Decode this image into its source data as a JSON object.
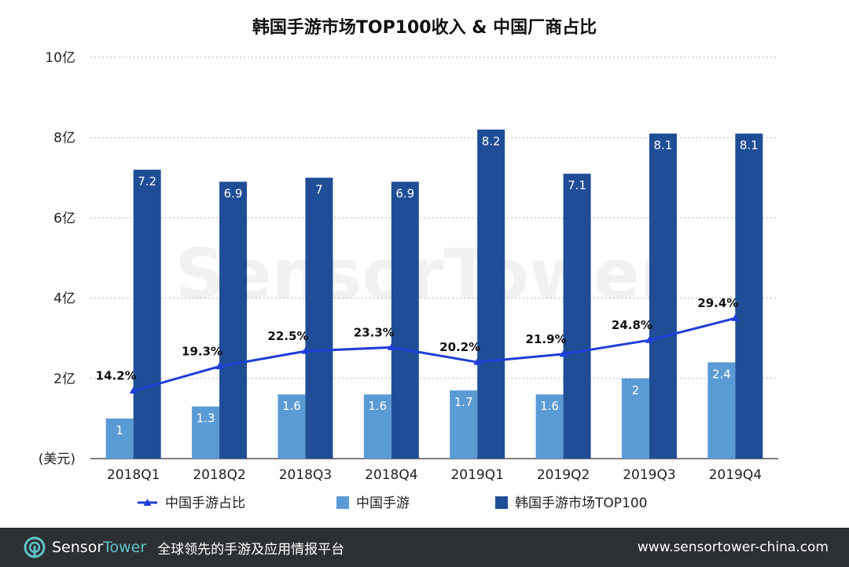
{
  "chart_data": {
    "type": "bar",
    "title": "韩国手游市场TOP100收入 & 中国厂商占比",
    "categories": [
      "2018Q1",
      "2018Q2",
      "2018Q3",
      "2018Q4",
      "2019Q1",
      "2019Q2",
      "2019Q3",
      "2019Q4"
    ],
    "series": [
      {
        "name": "中国手游",
        "type": "bar",
        "color": "#5b9bd5",
        "values": [
          1,
          1.3,
          1.6,
          1.6,
          1.7,
          1.6,
          2,
          2.4
        ],
        "labels": [
          "1",
          "1.3",
          "1.6",
          "1.6",
          "1.7",
          "1.6",
          "2",
          "2.4"
        ]
      },
      {
        "name": "韩国手游市场TOP100",
        "type": "bar",
        "color": "#1f4e96",
        "values": [
          7.2,
          6.9,
          7,
          6.9,
          8.2,
          7.1,
          8.1,
          8.1
        ],
        "labels": [
          "7.2",
          "6.9",
          "7",
          "6.9",
          "8.2",
          "7.1",
          "8.1",
          "8.1"
        ]
      },
      {
        "name": "中国手游占比",
        "type": "line",
        "color": "#1f3fd8",
        "values": [
          14.2,
          19.3,
          22.5,
          23.3,
          20.2,
          21.9,
          24.8,
          29.4
        ],
        "labels": [
          "14.2%",
          "19.3%",
          "22.5%",
          "23.3%",
          "20.2%",
          "21.9%",
          "24.8%",
          "29.4%"
        ]
      }
    ],
    "y_ticks": [
      "(美元)",
      "2亿",
      "4亿",
      "6亿",
      "8亿",
      "10亿"
    ],
    "ylim": [
      0,
      10
    ],
    "grid": true,
    "legend": "bottom"
  },
  "watermark": "SensorTower",
  "footer": {
    "logo_sensor": "Sensor",
    "logo_tower": "Tower",
    "tagline": "全球领先的手游及应用情报平台",
    "url": "www.sensortower-china.com"
  }
}
